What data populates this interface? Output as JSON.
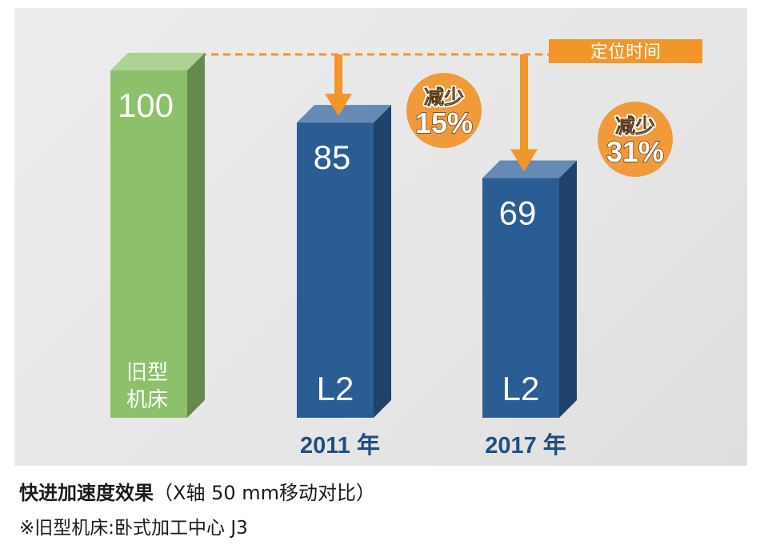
{
  "chart_data": {
    "type": "bar",
    "categories": [
      "旧型机床",
      "2011 年",
      "2017 年"
    ],
    "values": [
      100,
      85,
      69
    ],
    "value_labels": [
      "100",
      "85",
      "69"
    ],
    "bar_inner_labels": [
      "旧型\n机床",
      "L2",
      "L2"
    ],
    "x_labels": [
      "",
      "2011 年",
      "2017 年"
    ],
    "reductions": [
      {
        "category": "2011 年",
        "line1": "减少",
        "line2": "15%"
      },
      {
        "category": "2017 年",
        "line1": "减少",
        "line2": "31%"
      }
    ],
    "reference_label": "定位时间",
    "ylim": [
      0,
      100
    ],
    "colors": {
      "old_bar": "#8dc06b",
      "new_bar": "#2b5d95",
      "accent": "#f0962a",
      "badge": "#f09a3a",
      "year_text": "#1f4e82"
    }
  },
  "caption": {
    "title": "快进加速度效果",
    "subtitle": "（X轴 50 mm移动对比）",
    "note": "※旧型机床:卧式加工中心 J3"
  }
}
